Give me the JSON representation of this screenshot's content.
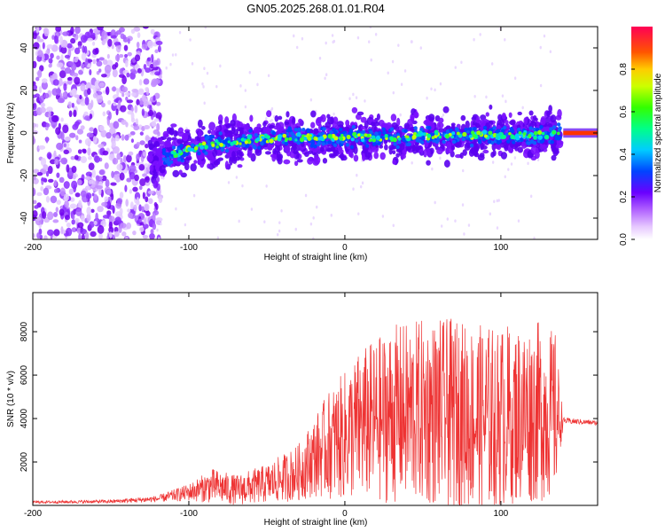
{
  "title": "GN05.2025.268.01.01.R04",
  "chart_data": [
    {
      "type": "heatmap",
      "name": "spectrogram",
      "xlabel": "Height of straight line (km)",
      "ylabel": "Frequency (Hz)",
      "xlim": [
        -200,
        162
      ],
      "ylim": [
        -50,
        50
      ],
      "xticks": [
        "-200",
        "-100",
        "0",
        "100"
      ],
      "xtick_values": [
        -200,
        -100,
        0,
        100
      ],
      "yticks": [
        "-40",
        "-20",
        "0",
        "20",
        "40"
      ],
      "ytick_values": [
        -40,
        -20,
        0,
        20,
        40
      ],
      "colorbar": {
        "label": "Normalized spectral amplitude",
        "range": [
          0,
          1
        ],
        "ticks": [
          "0.0",
          "0.2",
          "0.4",
          "0.6",
          "0.8"
        ],
        "tick_values": [
          0.0,
          0.2,
          0.4,
          0.6,
          0.8
        ]
      },
      "description_points": {
        "noise_region_x": [
          -200,
          -118
        ],
        "signal_start_x": -125,
        "signal_center_freq": [
          [
            -125,
            -12
          ],
          [
            -110,
            -10
          ],
          [
            -90,
            -6
          ],
          [
            -60,
            -3
          ],
          [
            -30,
            -2
          ],
          [
            0,
            -2
          ],
          [
            30,
            -2
          ],
          [
            60,
            -1
          ],
          [
            90,
            -1
          ],
          [
            120,
            -1
          ],
          [
            140,
            0
          ],
          [
            162,
            0
          ]
        ]
      }
    },
    {
      "type": "line",
      "name": "snr",
      "xlabel": "Height of straight line (km)",
      "ylabel": "SNR (10 * v/v)",
      "xlim": [
        -200,
        162
      ],
      "ylim": [
        0,
        9800
      ],
      "xticks": [
        "-200",
        "-100",
        "0",
        "100"
      ],
      "xtick_values": [
        -200,
        -100,
        0,
        100
      ],
      "yticks": [
        "2000",
        "4000",
        "6000",
        "8000"
      ],
      "ytick_values": [
        2000,
        4000,
        6000,
        8000
      ],
      "color": "#ee3333",
      "envelope": {
        "x": [
          -200,
          -150,
          -120,
          -100,
          -85,
          -70,
          -50,
          -30,
          -20,
          -10,
          0,
          10,
          20,
          30,
          50,
          70,
          90,
          110,
          125,
          135,
          140,
          162
        ],
        "mean": [
          150,
          180,
          300,
          600,
          900,
          700,
          1000,
          1500,
          2200,
          2800,
          3200,
          3700,
          3900,
          4200,
          4300,
          4200,
          4000,
          4200,
          4300,
          4200,
          3900,
          3800
        ],
        "amp": [
          60,
          80,
          150,
          400,
          800,
          700,
          900,
          1300,
          1800,
          2500,
          3000,
          3500,
          3800,
          4100,
          4300,
          4400,
          4300,
          4200,
          4200,
          3800,
          150,
          100
        ]
      }
    }
  ]
}
